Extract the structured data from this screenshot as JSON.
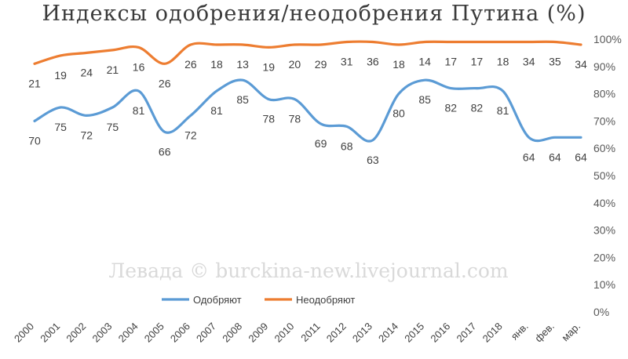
{
  "chart_data": {
    "type": "line",
    "title": "Индексы одобрения/неодобрения Путина (%)",
    "categories": [
      "2000",
      "2001",
      "2002",
      "2003",
      "2004",
      "2005",
      "2006",
      "2007",
      "2008",
      "2009",
      "2010",
      "2011",
      "2012",
      "2013",
      "2014",
      "2015",
      "2016",
      "2017",
      "2018",
      "янв.",
      "фев.",
      "мар."
    ],
    "series": [
      {
        "name": "Одобряют",
        "color": "#5b9bd5",
        "values": [
          70,
          75,
          72,
          75,
          81,
          66,
          72,
          81,
          85,
          78,
          78,
          69,
          68,
          63,
          80,
          85,
          82,
          82,
          81,
          64,
          64,
          64
        ],
        "data_labels": [
          "70",
          "75",
          "72",
          "75",
          "81",
          "66",
          "72",
          "81",
          "85",
          "78",
          "78",
          "69",
          "68",
          "63",
          "80",
          "85",
          "82",
          "82",
          "81",
          "64",
          "64",
          "64"
        ],
        "label_position": "below"
      },
      {
        "name": "Неодобряют",
        "color": "#ed7d31",
        "values": [
          91,
          94,
          95,
          96,
          97,
          91,
          98,
          98,
          98,
          97,
          98,
          98,
          99,
          99,
          98,
          99,
          99,
          99,
          99,
          99,
          99,
          98
        ],
        "data_labels": [
          "21",
          "19",
          "24",
          "21",
          "16",
          "26",
          "26",
          "18",
          "13",
          "19",
          "20",
          "29",
          "31",
          "36",
          "18",
          "14",
          "17",
          "17",
          "18",
          "34",
          "35",
          "34"
        ],
        "label_position": "below"
      }
    ],
    "y_axis": {
      "position": "right",
      "ylim": [
        0,
        100
      ],
      "ticks": [
        "0%",
        "10%",
        "20%",
        "30%",
        "40%",
        "50%",
        "60%",
        "70%",
        "80%",
        "90%",
        "100%"
      ]
    },
    "grid": false,
    "legend": "bottom",
    "watermark": "Левада © burckina-new.livejournal.com"
  }
}
